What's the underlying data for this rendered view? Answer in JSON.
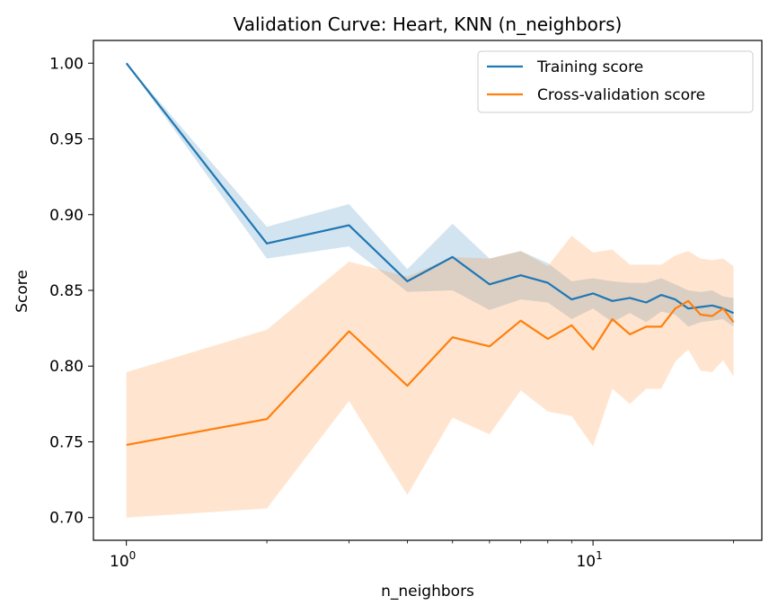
{
  "chart_data": {
    "type": "line",
    "title": "Validation Curve: Heart, KNN (n_neighbors)",
    "xlabel": "n_neighbors",
    "ylabel": "Score",
    "xscale": "log",
    "xlim": [
      0.85,
      23
    ],
    "ylim": [
      0.685,
      1.015
    ],
    "x": [
      1,
      2,
      3,
      4,
      5,
      6,
      7,
      8,
      9,
      10,
      11,
      12,
      13,
      14,
      15,
      16,
      17,
      18,
      19,
      20
    ],
    "yticks": [
      0.7,
      0.75,
      0.8,
      0.85,
      0.9,
      0.95,
      1.0
    ],
    "ytick_labels": [
      "0.70",
      "0.75",
      "0.80",
      "0.85",
      "0.90",
      "0.95",
      "1.00"
    ],
    "xticks": [
      {
        "base": "10",
        "exp": "0",
        "value": 1
      },
      {
        "base": "10",
        "exp": "1",
        "value": 10
      }
    ],
    "minor_xticks": [
      2,
      3,
      4,
      5,
      6,
      7,
      8,
      9,
      20
    ],
    "grid": false,
    "legend_position": "top-right",
    "series": [
      {
        "name": "Training score",
        "color": "#1f77b4",
        "values": [
          1.0,
          0.881,
          0.893,
          0.856,
          0.872,
          0.854,
          0.86,
          0.855,
          0.844,
          0.848,
          0.843,
          0.845,
          0.842,
          0.847,
          0.844,
          0.838,
          0.839,
          0.84,
          0.838,
          0.835
        ],
        "lower": [
          1.0,
          0.871,
          0.879,
          0.849,
          0.85,
          0.837,
          0.844,
          0.842,
          0.831,
          0.838,
          0.829,
          0.835,
          0.829,
          0.836,
          0.834,
          0.826,
          0.829,
          0.83,
          0.831,
          0.826
        ],
        "upper": [
          1.0,
          0.892,
          0.907,
          0.864,
          0.894,
          0.871,
          0.876,
          0.868,
          0.856,
          0.858,
          0.856,
          0.855,
          0.855,
          0.858,
          0.854,
          0.85,
          0.849,
          0.85,
          0.846,
          0.845
        ]
      },
      {
        "name": "Cross-validation score",
        "color": "#ff7f0e",
        "values": [
          0.748,
          0.765,
          0.823,
          0.787,
          0.819,
          0.813,
          0.83,
          0.818,
          0.827,
          0.811,
          0.831,
          0.821,
          0.826,
          0.826,
          0.838,
          0.843,
          0.834,
          0.833,
          0.838,
          0.829
        ],
        "lower": [
          0.7,
          0.706,
          0.777,
          0.715,
          0.766,
          0.755,
          0.784,
          0.77,
          0.767,
          0.747,
          0.785,
          0.775,
          0.785,
          0.785,
          0.803,
          0.811,
          0.797,
          0.796,
          0.804,
          0.793
        ],
        "upper": [
          0.796,
          0.824,
          0.869,
          0.859,
          0.872,
          0.871,
          0.876,
          0.866,
          0.886,
          0.875,
          0.877,
          0.867,
          0.867,
          0.867,
          0.873,
          0.876,
          0.871,
          0.87,
          0.871,
          0.866
        ]
      }
    ]
  }
}
